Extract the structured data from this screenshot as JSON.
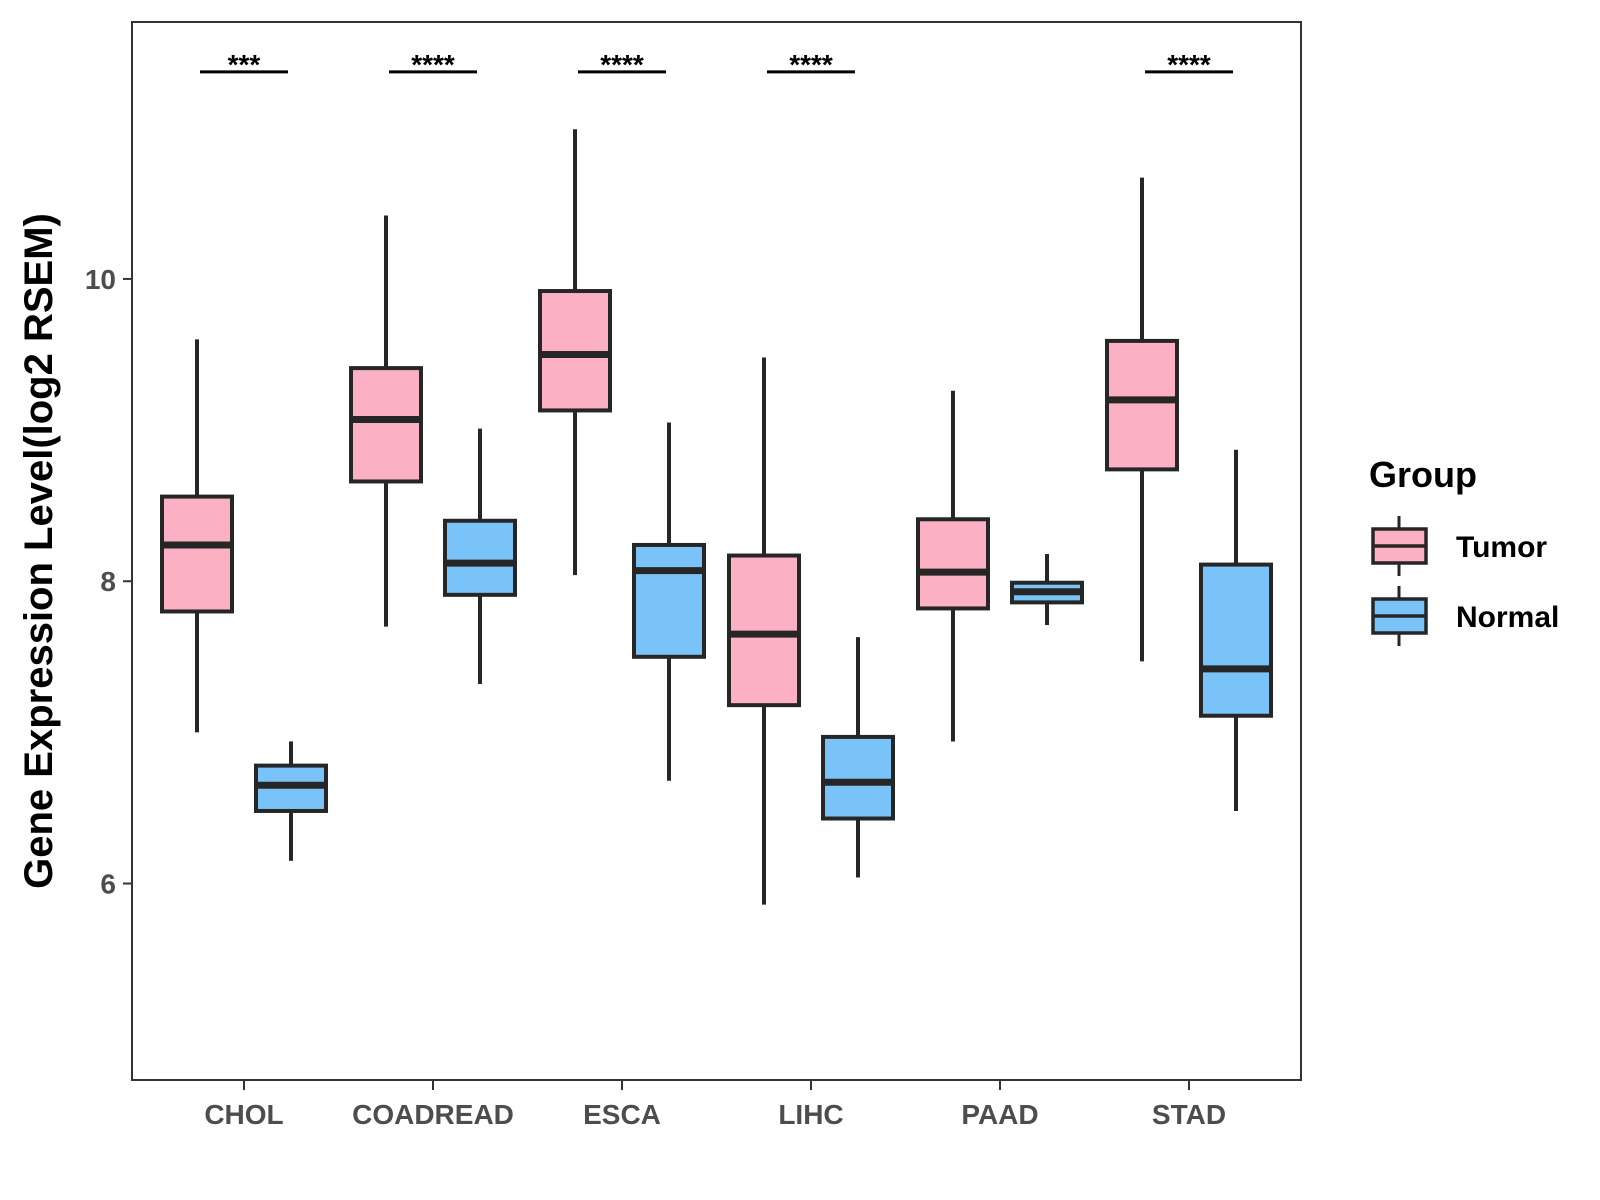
{
  "chart_data": {
    "type": "boxplot",
    "title": "",
    "xlabel": "",
    "ylabel": "Gene Expression Level(log2 RSEM)",
    "ylim": [
      4.7,
      11.7
    ],
    "yticks": [
      6,
      8,
      10
    ],
    "grid": false,
    "legend_position": "right",
    "legend_title": "Group",
    "categories": [
      "CHOL",
      "COADREAD",
      "ESCA",
      "LIHC",
      "PAAD",
      "STAD"
    ],
    "series": [
      {
        "name": "Tumor",
        "color": "#fbb1c3",
        "boxes": [
          {
            "whisker_low": 7.0,
            "q1": 7.8,
            "median": 8.24,
            "q3": 8.56,
            "whisker_high": 9.6
          },
          {
            "whisker_low": 7.7,
            "q1": 8.66,
            "median": 9.07,
            "q3": 9.41,
            "whisker_high": 10.42
          },
          {
            "whisker_low": 8.04,
            "q1": 9.13,
            "median": 9.5,
            "q3": 9.92,
            "whisker_high": 10.99
          },
          {
            "whisker_low": 5.86,
            "q1": 7.18,
            "median": 7.65,
            "q3": 8.17,
            "whisker_high": 9.48
          },
          {
            "whisker_low": 6.94,
            "q1": 7.82,
            "median": 8.06,
            "q3": 8.41,
            "whisker_high": 9.26
          },
          {
            "whisker_low": 7.47,
            "q1": 8.74,
            "median": 9.2,
            "q3": 9.59,
            "whisker_high": 10.67
          }
        ]
      },
      {
        "name": "Normal",
        "color": "#7ac3f8",
        "boxes": [
          {
            "whisker_low": 6.15,
            "q1": 6.48,
            "median": 6.65,
            "q3": 6.78,
            "whisker_high": 6.94
          },
          {
            "whisker_low": 7.32,
            "q1": 7.91,
            "median": 8.12,
            "q3": 8.4,
            "whisker_high": 9.01
          },
          {
            "whisker_low": 6.68,
            "q1": 7.5,
            "median": 8.07,
            "q3": 8.24,
            "whisker_high": 9.05
          },
          {
            "whisker_low": 6.04,
            "q1": 6.43,
            "median": 6.67,
            "q3": 6.97,
            "whisker_high": 7.63
          },
          {
            "whisker_low": 7.71,
            "q1": 7.86,
            "median": 7.93,
            "q3": 7.99,
            "whisker_high": 8.18
          },
          {
            "whisker_low": 6.48,
            "q1": 7.11,
            "median": 7.42,
            "q3": 8.11,
            "whisker_high": 8.87
          }
        ]
      }
    ],
    "significance": [
      {
        "category": "CHOL",
        "label": "***"
      },
      {
        "category": "COADREAD",
        "label": "****"
      },
      {
        "category": "ESCA",
        "label": "****"
      },
      {
        "category": "LIHC",
        "label": "****"
      },
      {
        "category": "STAD",
        "label": "****"
      }
    ],
    "significance_y": 11.37
  }
}
